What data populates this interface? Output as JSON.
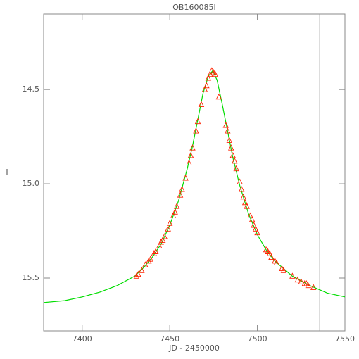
{
  "chart_data": {
    "type": "line",
    "title": "OB160085I",
    "x_label": "JD - 2450000",
    "y_label": "I",
    "xlim": [
      7378,
      7550
    ],
    "ylim": [
      14.1,
      15.78
    ],
    "y_inverted": true,
    "xticks": [
      7400,
      7450,
      7500,
      7550
    ],
    "yticks": [
      14.5,
      {
        "value": 15,
        "label": "15.0"
      },
      15.5
    ],
    "vline": 7535.6,
    "vline_color": "#999999",
    "series": [
      {
        "style": "line",
        "color": "#00dd00",
        "x": [
          7378,
          7390,
          7400,
          7410,
          7420,
          7430,
          7435,
          7440,
          7445,
          7450,
          7455,
          7460,
          7463,
          7466,
          7469,
          7472,
          7474.5,
          7477,
          7480,
          7483,
          7486,
          7490,
          7495,
          7500,
          7505,
          7510,
          7520,
          7530,
          7540,
          7550
        ],
        "values": [
          15.63,
          15.62,
          15.6,
          15.575,
          15.54,
          15.49,
          15.445,
          15.39,
          15.32,
          15.22,
          15.09,
          14.92,
          14.8,
          14.66,
          14.52,
          14.43,
          14.4,
          14.45,
          14.58,
          14.72,
          14.86,
          15.01,
          15.16,
          15.27,
          15.35,
          15.41,
          15.49,
          15.54,
          15.58,
          15.6
        ]
      },
      {
        "style": "triangle",
        "color": "#ff2200",
        "x": [
          7431,
          7432,
          7434,
          7436,
          7438,
          7439,
          7441,
          7442,
          7444,
          7445,
          7446,
          7447,
          7449,
          7450,
          7452,
          7453,
          7454,
          7456,
          7457,
          7459,
          7461,
          7462,
          7463,
          7465,
          7466,
          7468,
          7470,
          7471,
          7472,
          7473,
          7474,
          7475,
          7476,
          7478,
          7482,
          7483,
          7484,
          7485,
          7486,
          7487,
          7488,
          7490,
          7491,
          7492,
          7493,
          7494,
          7496,
          7497,
          7498,
          7499,
          7500,
          7505,
          7506,
          7507,
          7508,
          7510,
          7511,
          7514,
          7515,
          7520,
          7523,
          7525,
          7527,
          7528,
          7529,
          7532
        ],
        "values": [
          15.49,
          15.48,
          15.46,
          15.43,
          15.41,
          15.4,
          15.37,
          15.36,
          15.33,
          15.31,
          15.3,
          15.28,
          15.24,
          15.21,
          15.17,
          15.15,
          15.12,
          15.06,
          15.03,
          14.97,
          14.89,
          14.85,
          14.81,
          14.72,
          14.67,
          14.58,
          14.5,
          14.48,
          14.44,
          14.42,
          14.4,
          14.41,
          14.42,
          14.54,
          14.69,
          14.72,
          14.77,
          14.81,
          14.85,
          14.88,
          14.92,
          14.99,
          15.03,
          15.07,
          15.1,
          15.12,
          15.17,
          15.19,
          15.22,
          15.24,
          15.26,
          15.35,
          15.36,
          15.37,
          15.39,
          15.41,
          15.42,
          15.45,
          15.46,
          15.49,
          15.51,
          15.52,
          15.53,
          15.53,
          15.54,
          15.55
        ]
      }
    ]
  }
}
